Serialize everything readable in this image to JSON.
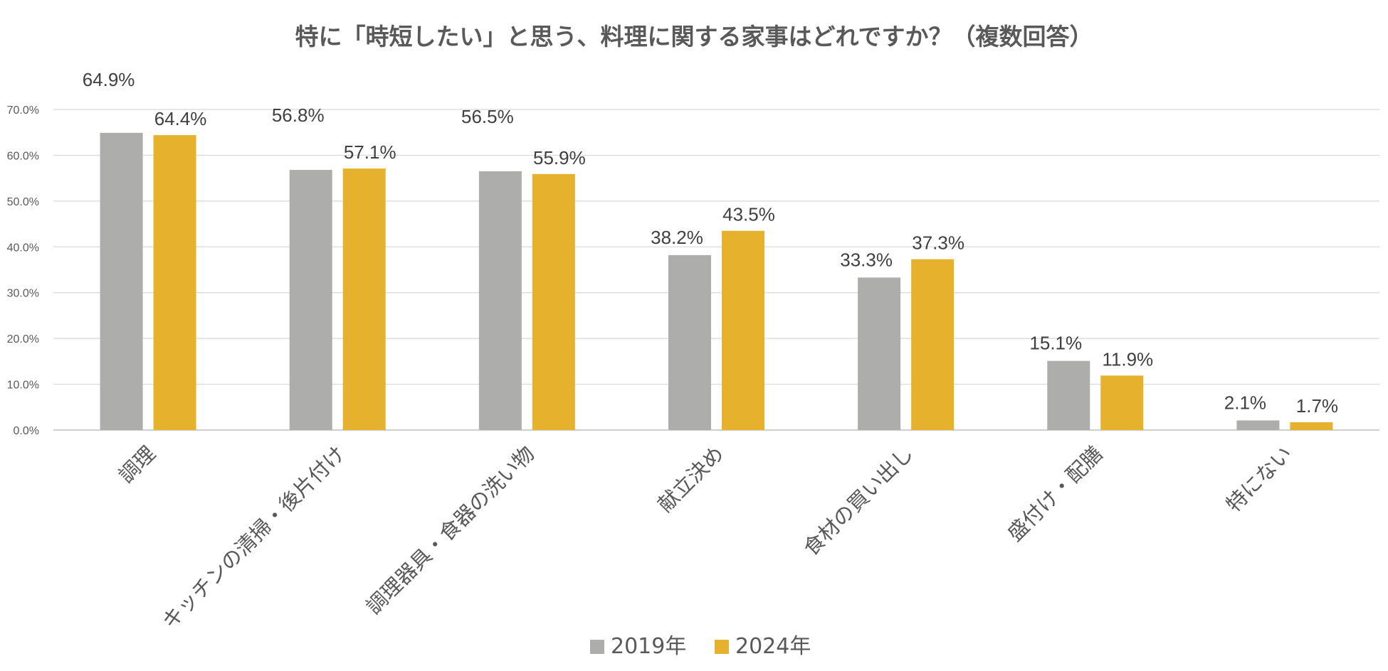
{
  "chart_data": {
    "type": "bar",
    "title": "特に「時短したい」と思う、料理に関する家事はどれですか？（複数回答）",
    "categories": [
      "調理",
      "キッチンの清掃・後片付け",
      "調理器具・食器の洗い物",
      "献立決め",
      "食材の買い出し",
      "盛付け・配膳",
      "特にない"
    ],
    "series": [
      {
        "name": "2019年",
        "color": "#adadab",
        "values": [
          64.9,
          56.8,
          56.5,
          38.2,
          33.3,
          15.1,
          2.1
        ],
        "labels": [
          "64.9%",
          "56.8%",
          "56.5%",
          "38.2%",
          "33.3%",
          "15.1%",
          "2.1%"
        ]
      },
      {
        "name": "2024年",
        "color": "#e6b22e",
        "values": [
          64.4,
          57.1,
          55.9,
          43.5,
          37.3,
          11.9,
          1.7
        ],
        "labels": [
          "64.4%",
          "57.1%",
          "55.9%",
          "43.5%",
          "37.3%",
          "11.9%",
          "1.7%"
        ]
      }
    ],
    "ylim": [
      0,
      70
    ],
    "yticks": [
      "0.0%",
      "10.0%",
      "20.0%",
      "30.0%",
      "40.0%",
      "50.0%",
      "60.0%",
      "70.0%"
    ],
    "ytick_values": [
      0,
      10,
      20,
      30,
      40,
      50,
      60,
      70
    ],
    "xlabel": "",
    "ylabel": "",
    "grid": true,
    "legend": "bottom-center"
  }
}
